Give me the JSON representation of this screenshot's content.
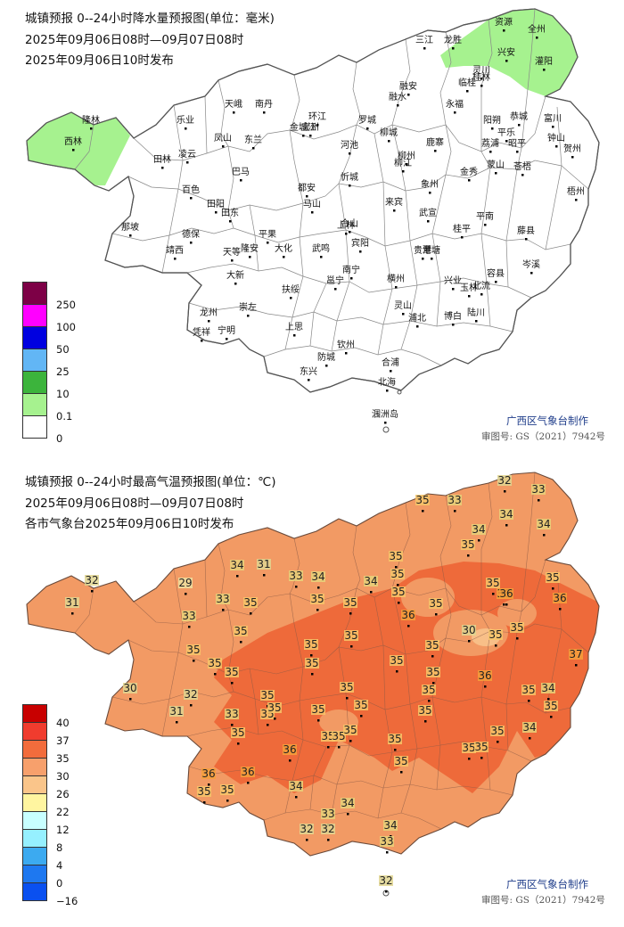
{
  "colors": {
    "rain_legend": [
      "#7d0046",
      "#ff00ff",
      "#0000e0",
      "#62b6f5",
      "#3cb43c",
      "#a6f28f",
      "#ffffff"
    ],
    "temp_legend": [
      "#c80000",
      "#f03c2e",
      "#f26c3c",
      "#f7a06c",
      "#fac58a",
      "#fff5a0",
      "#c8ffff",
      "#96f0ff",
      "#3caaf0",
      "#1e78f0",
      "#0a50f0"
    ],
    "temp_band_30_35": "#f29a64",
    "temp_band_35_37": "#ee6a3a",
    "temp_band_26_30": "#f8bf88",
    "county_line": "#888888",
    "credit_text": "#1e3c8a"
  },
  "rain_map": {
    "title": "城镇预报 0--24小时降水量预报图(单位：毫米)",
    "period": "2025年09月06日08时—09月07日08时",
    "issued": "2025年09月06日10时发布",
    "legend_labels": [
      "250",
      "100",
      "50",
      "25",
      "10",
      "0.1",
      "0"
    ],
    "credit": "广西区气象台制作",
    "review": "审图号: GS（2021）7942号",
    "towns": [
      {
        "name": "三江"
      },
      {
        "name": "龙胜"
      },
      {
        "name": "资源"
      },
      {
        "name": "全州"
      },
      {
        "name": "兴安"
      },
      {
        "name": "灵川"
      },
      {
        "name": "桂林"
      },
      {
        "name": "临桂"
      },
      {
        "name": "灌阳"
      },
      {
        "name": "融安"
      },
      {
        "name": "融水"
      },
      {
        "name": "永福"
      },
      {
        "name": "阳朔"
      },
      {
        "name": "恭城"
      },
      {
        "name": "平乐"
      },
      {
        "name": "富川"
      },
      {
        "name": "钟山"
      },
      {
        "name": "贺州"
      },
      {
        "name": "荔浦"
      },
      {
        "name": "昭平"
      },
      {
        "name": "蒙山"
      },
      {
        "name": "金秀"
      },
      {
        "name": "苍梧"
      },
      {
        "name": "梧州"
      },
      {
        "name": "藤县"
      },
      {
        "name": "岑溪"
      },
      {
        "name": "平南"
      },
      {
        "name": "桂平"
      },
      {
        "name": "武宣"
      },
      {
        "name": "象州"
      },
      {
        "name": "鹿寨"
      },
      {
        "name": "柳城"
      },
      {
        "name": "柳州"
      },
      {
        "name": "柳江"
      },
      {
        "name": "罗城"
      },
      {
        "name": "环江"
      },
      {
        "name": "宜州"
      },
      {
        "name": "河池"
      },
      {
        "name": "忻城"
      },
      {
        "name": "来宾"
      },
      {
        "name": "合山"
      },
      {
        "name": "上林"
      },
      {
        "name": "宾阳"
      },
      {
        "name": "武鸣"
      },
      {
        "name": "南宁"
      },
      {
        "name": "邕宁"
      },
      {
        "name": "横州"
      },
      {
        "name": "贵港"
      },
      {
        "name": "覃塘"
      },
      {
        "name": "兴业"
      },
      {
        "name": "玉林"
      },
      {
        "name": "容县"
      },
      {
        "name": "北流"
      },
      {
        "name": "陆川"
      },
      {
        "name": "博白"
      },
      {
        "name": "浦北"
      },
      {
        "name": "灵山"
      },
      {
        "name": "钦州"
      },
      {
        "name": "合浦"
      },
      {
        "name": "北海"
      },
      {
        "name": "防城"
      },
      {
        "name": "东兴"
      },
      {
        "name": "上思"
      },
      {
        "name": "扶绥"
      },
      {
        "name": "崇左"
      },
      {
        "name": "宁明"
      },
      {
        "name": "凭祥"
      },
      {
        "name": "龙州"
      },
      {
        "name": "大新"
      },
      {
        "name": "天等"
      },
      {
        "name": "隆安"
      },
      {
        "name": "平果"
      },
      {
        "name": "马山"
      },
      {
        "name": "都安"
      },
      {
        "name": "大化"
      },
      {
        "name": "巴马"
      },
      {
        "name": "东兰"
      },
      {
        "name": "凤山"
      },
      {
        "name": "天峨"
      },
      {
        "name": "南丹"
      },
      {
        "name": "乐业"
      },
      {
        "name": "凌云"
      },
      {
        "name": "田林"
      },
      {
        "name": "百色"
      },
      {
        "name": "田阳"
      },
      {
        "name": "田东"
      },
      {
        "name": "德保"
      },
      {
        "name": "靖西"
      },
      {
        "name": "那坡"
      },
      {
        "name": "西林"
      },
      {
        "name": "隆林"
      },
      {
        "name": "金城江"
      },
      {
        "name": "涠洲岛"
      }
    ]
  },
  "temp_map": {
    "title": "城镇预报 0--24小时最高气温预报图(单位：℃)",
    "period": "2025年09月06日08时—09月07日08时",
    "issued": "各市气象台2025年09月06日10时发布",
    "legend_labels": [
      "40",
      "37",
      "35",
      "30",
      "26",
      "22",
      "12",
      "8",
      "4",
      "0",
      "−16"
    ],
    "credit": "广西区气象台制作",
    "review": "审图号: GS（2021）7942号",
    "values": [
      {
        "v": "32"
      },
      {
        "v": "33"
      },
      {
        "v": "35"
      },
      {
        "v": "33"
      },
      {
        "v": "34"
      },
      {
        "v": "34"
      },
      {
        "v": "35"
      },
      {
        "v": "34"
      },
      {
        "v": "35"
      },
      {
        "v": "35"
      },
      {
        "v": "34"
      },
      {
        "v": "31"
      },
      {
        "v": "32"
      },
      {
        "v": "29"
      },
      {
        "v": "35"
      },
      {
        "v": "34"
      },
      {
        "v": "33"
      },
      {
        "v": "35"
      },
      {
        "v": "35"
      },
      {
        "v": "36"
      },
      {
        "v": "35"
      },
      {
        "v": "36"
      },
      {
        "v": "35"
      },
      {
        "v": "31"
      },
      {
        "v": "33"
      },
      {
        "v": "35"
      },
      {
        "v": "35"
      },
      {
        "v": "36"
      },
      {
        "v": "36"
      },
      {
        "v": "34"
      },
      {
        "v": "33"
      },
      {
        "v": "35"
      },
      {
        "v": "35"
      },
      {
        "v": "30"
      },
      {
        "v": "35"
      },
      {
        "v": "35"
      },
      {
        "v": "35"
      },
      {
        "v": "35"
      },
      {
        "v": "35"
      },
      {
        "v": "35"
      },
      {
        "v": "35"
      },
      {
        "v": "37"
      },
      {
        "v": "35"
      },
      {
        "v": "35"
      },
      {
        "v": "35"
      },
      {
        "v": "35"
      },
      {
        "v": "36"
      },
      {
        "v": "35"
      },
      {
        "v": "30"
      },
      {
        "v": "32"
      },
      {
        "v": "35"
      },
      {
        "v": "35"
      },
      {
        "v": "35"
      },
      {
        "v": "35"
      },
      {
        "v": "35"
      },
      {
        "v": "35"
      },
      {
        "v": "31"
      },
      {
        "v": "33"
      },
      {
        "v": "35"
      },
      {
        "v": "34"
      },
      {
        "v": "35"
      },
      {
        "v": "35"
      },
      {
        "v": "35"
      },
      {
        "v": "35"
      },
      {
        "v": "35"
      },
      {
        "v": "36"
      },
      {
        "v": "36"
      },
      {
        "v": "35"
      },
      {
        "v": "35"
      },
      {
        "v": "35"
      },
      {
        "v": "35"
      },
      {
        "v": "36"
      },
      {
        "v": "35"
      },
      {
        "v": "34"
      },
      {
        "v": "35"
      },
      {
        "v": "35"
      },
      {
        "v": "34"
      },
      {
        "v": "34"
      },
      {
        "v": "33"
      },
      {
        "v": "32"
      },
      {
        "v": "32"
      },
      {
        "v": "34"
      },
      {
        "v": "33"
      },
      {
        "v": "32"
      }
    ]
  }
}
